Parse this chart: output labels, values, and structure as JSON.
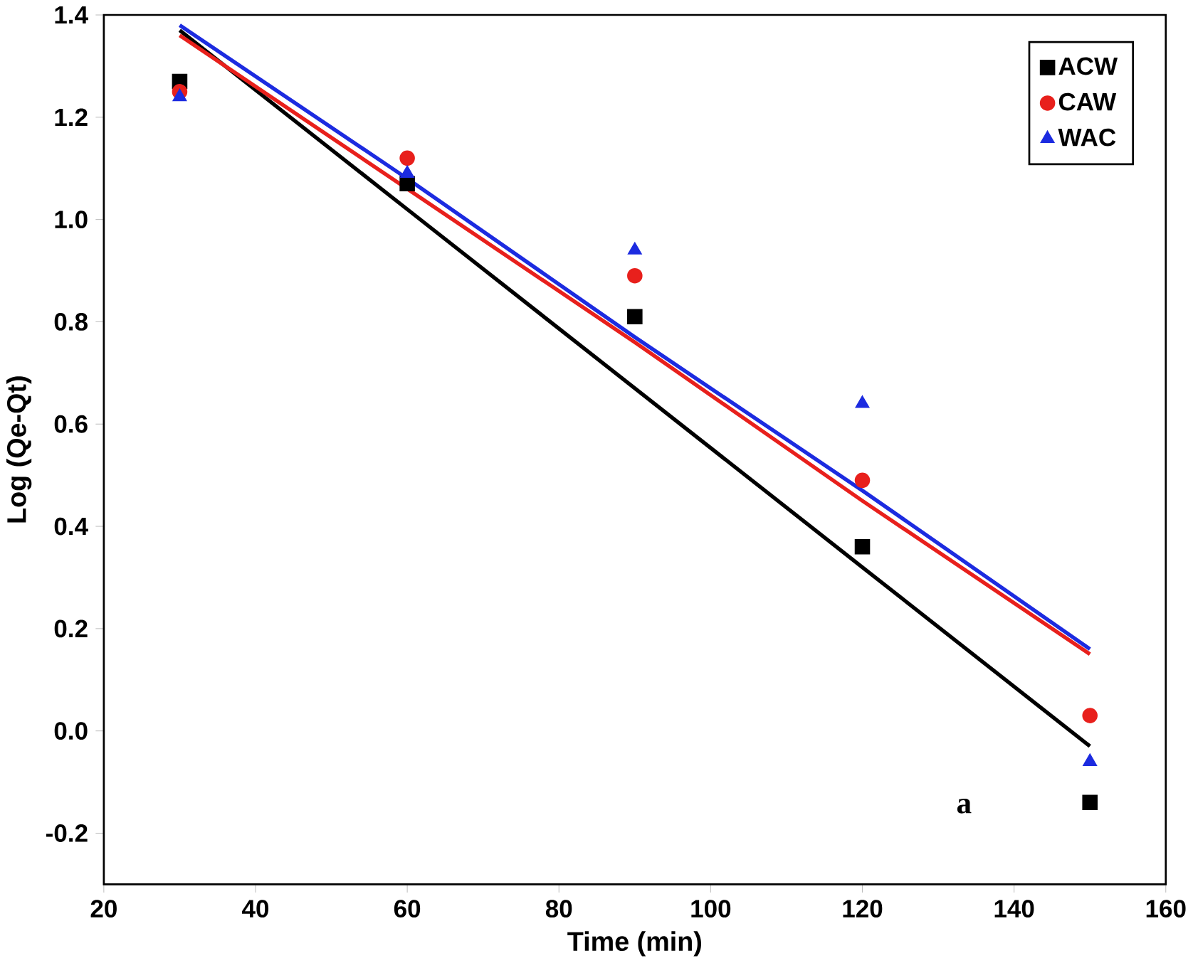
{
  "chart_data": {
    "type": "scatter",
    "xlabel": "Time (min)",
    "ylabel": "Log (Qe-Qt)",
    "xlim": [
      20,
      160
    ],
    "ylim": [
      -0.3,
      1.4
    ],
    "xticks": [
      20,
      40,
      60,
      80,
      100,
      120,
      140,
      160
    ],
    "yticks": [
      -0.2,
      {
        "value": 0,
        "label": "0.0"
      },
      0.2,
      0.4,
      0.6,
      0.8,
      {
        "value": 1,
        "label": "1.0"
      },
      1.2,
      1.4
    ],
    "grid": false,
    "legend": "top right",
    "annotations": [
      "a"
    ],
    "x": [
      30,
      60,
      90,
      120,
      150
    ],
    "series": [
      {
        "name": "ACW",
        "color": "#000000",
        "marker": "square",
        "values": [
          1.27,
          1.07,
          0.81,
          0.36,
          -0.14
        ]
      },
      {
        "name": "CAW",
        "color": "#e8201c",
        "marker": "circle",
        "values": [
          1.25,
          1.12,
          0.89,
          0.49,
          0.03
        ]
      },
      {
        "name": "WAC",
        "color": "#1c2be0",
        "marker": "triangle",
        "values": [
          1.24,
          1.09,
          0.94,
          0.64,
          -0.06
        ]
      },
      {
        "type": "line",
        "color": "#000000",
        "values": [
          1.37,
          1.02,
          0.67,
          0.32,
          -0.03
        ]
      },
      {
        "type": "line",
        "color": "#e8201c",
        "values": [
          1.36,
          1.06,
          0.76,
          0.45,
          0.15
        ]
      },
      {
        "type": "line",
        "color": "#1c2be0",
        "values": [
          1.38,
          1.08,
          0.77,
          0.47,
          0.16
        ]
      }
    ]
  }
}
